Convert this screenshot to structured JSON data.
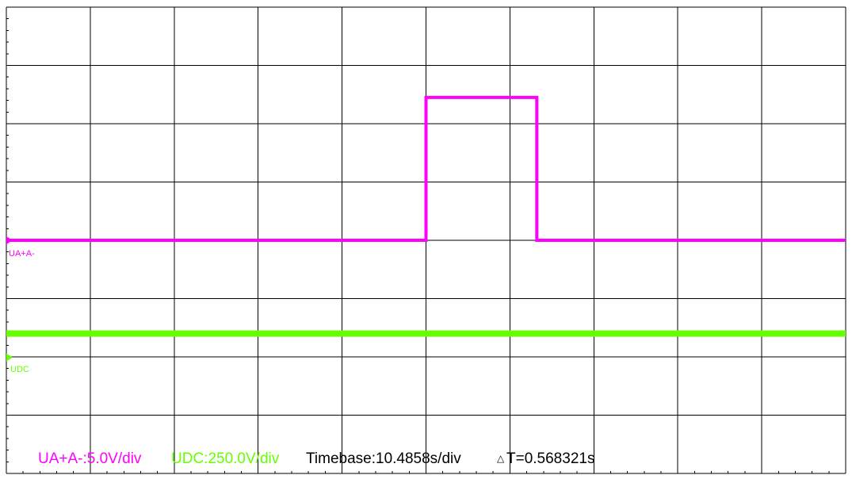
{
  "channels": [
    {
      "label": "UA+A-",
      "scale_label": "UA+A-:5.0V/div",
      "color": "#ff00ff"
    },
    {
      "label": "UDC",
      "scale_label": "UDC:250.0V/div",
      "color": "#66ff00"
    }
  ],
  "status": {
    "timebase_label": "Timebase:10.4858s/div",
    "delta_t_symbol": "△",
    "delta_t_label": "T=0.568321s",
    "text_color": "#000000"
  },
  "grid": {
    "x_divisions": 10,
    "y_divisions": 8,
    "color": "#000000"
  },
  "chart_data": {
    "type": "line",
    "x_unit": "div",
    "y_unit": "div",
    "xlim": [
      0,
      10
    ],
    "ylim": [
      0,
      8
    ],
    "grid": true,
    "series": [
      {
        "name": "UA+A-",
        "color": "#ff00ff",
        "x": [
          0,
          5.0,
          5.0,
          6.32,
          6.32,
          10
        ],
        "y": [
          4.0,
          4.0,
          6.45,
          6.45,
          4.0,
          4.0
        ]
      },
      {
        "name": "UDC",
        "color": "#66ff00",
        "x": [
          0,
          10
        ],
        "y": [
          2.4,
          2.4
        ]
      }
    ]
  }
}
